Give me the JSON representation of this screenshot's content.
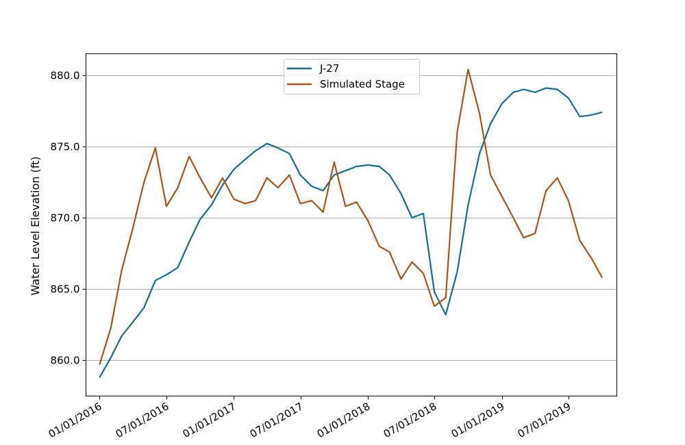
{
  "chart_data": {
    "type": "line",
    "title": "",
    "xlabel": "",
    "ylabel": "Water Level Elevation (ft)",
    "ylim": [
      857.5,
      881.5
    ],
    "xlim": [
      "2015-11-25",
      "2019-11-10"
    ],
    "grid": {
      "y": true,
      "x": false
    },
    "legend": "top-center",
    "x_ticks": [
      "2016-01-01",
      "2016-07-01",
      "2017-01-01",
      "2017-07-01",
      "2018-01-01",
      "2018-07-01",
      "2019-01-01",
      "2019-07-01"
    ],
    "x_tick_labels": [
      "01/01/2016",
      "07/01/2016",
      "01/01/2017",
      "07/01/2017",
      "01/01/2018",
      "07/01/2018",
      "01/01/2019",
      "07/01/2019"
    ],
    "y_ticks": [
      860.0,
      865.0,
      870.0,
      875.0,
      880.0
    ],
    "y_tick_labels": [
      "860.0",
      "865.0",
      "870.0",
      "875.0",
      "880.0"
    ],
    "x": [
      "2016-01-01",
      "2016-02-01",
      "2016-03-01",
      "2016-04-01",
      "2016-05-01",
      "2016-06-01",
      "2016-07-01",
      "2016-08-01",
      "2016-09-01",
      "2016-10-01",
      "2016-11-01",
      "2016-12-01",
      "2017-01-01",
      "2017-02-01",
      "2017-03-01",
      "2017-04-01",
      "2017-05-01",
      "2017-06-01",
      "2017-07-01",
      "2017-08-01",
      "2017-09-01",
      "2017-10-01",
      "2017-11-01",
      "2017-12-01",
      "2018-01-01",
      "2018-02-01",
      "2018-03-01",
      "2018-04-01",
      "2018-05-01",
      "2018-06-01",
      "2018-07-01",
      "2018-08-01",
      "2018-09-01",
      "2018-10-01",
      "2018-11-01",
      "2018-12-01",
      "2019-01-01",
      "2019-02-01",
      "2019-03-01",
      "2019-04-01",
      "2019-05-01",
      "2019-06-01",
      "2019-07-01",
      "2019-08-01",
      "2019-09-01",
      "2019-10-01"
    ],
    "series": [
      {
        "name": "J-27",
        "color": "#0a6f99",
        "values": [
          858.8,
          860.2,
          861.7,
          862.7,
          863.7,
          865.6,
          866.0,
          866.5,
          868.3,
          869.9,
          870.9,
          872.3,
          873.4,
          874.1,
          874.7,
          875.2,
          874.9,
          874.5,
          873.0,
          872.2,
          871.9,
          873.0,
          873.3,
          873.6,
          873.7,
          873.6,
          873.0,
          871.7,
          870.0,
          870.3,
          864.8,
          863.2,
          866.2,
          870.9,
          874.5,
          876.6,
          878.0,
          878.8,
          879.0,
          878.8,
          879.1,
          879.0,
          878.4,
          877.1,
          877.2,
          877.4
        ]
      },
      {
        "name": "Simulated Stage",
        "color": "#b84f0e",
        "values": [
          859.7,
          862.3,
          866.3,
          869.3,
          872.5,
          874.9,
          870.8,
          872.1,
          874.3,
          872.8,
          871.4,
          872.8,
          871.3,
          871.0,
          871.2,
          872.8,
          872.1,
          873.0,
          871.0,
          871.2,
          870.4,
          873.9,
          870.8,
          871.1,
          869.8,
          868.0,
          867.6,
          865.7,
          866.9,
          866.1,
          863.8,
          864.4,
          876.0,
          880.4,
          877.3,
          873.0,
          871.5,
          870.0,
          868.6,
          868.9,
          871.9,
          872.8,
          871.2,
          868.4,
          867.2,
          865.8
        ]
      }
    ]
  }
}
